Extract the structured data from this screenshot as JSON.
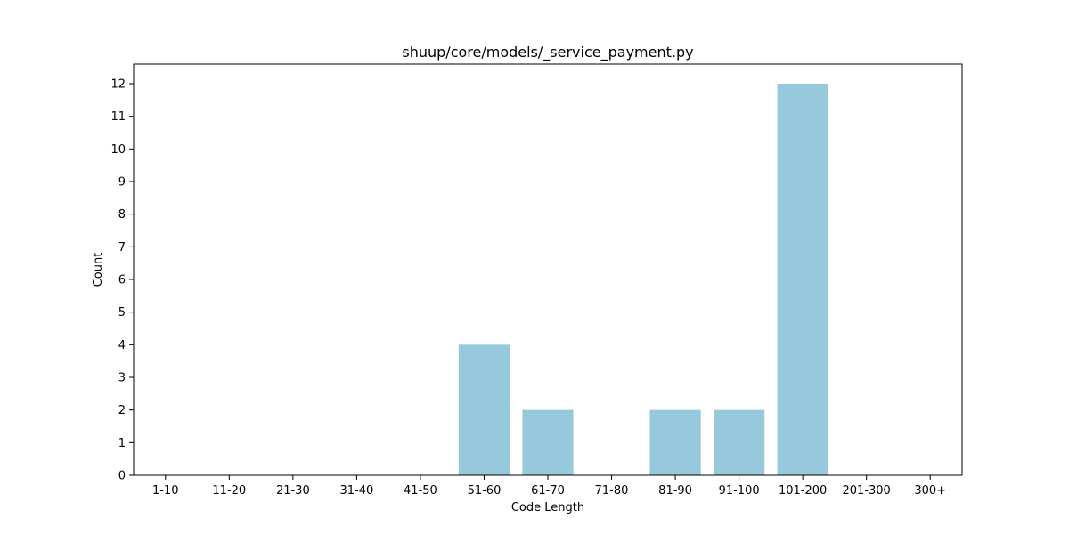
{
  "chart_data": {
    "type": "bar",
    "title": "shuup/core/models/_service_payment.py",
    "xlabel": "Code Length",
    "ylabel": "Count",
    "categories": [
      "1-10",
      "11-20",
      "21-30",
      "31-40",
      "41-50",
      "51-60",
      "61-70",
      "71-80",
      "81-90",
      "91-100",
      "101-200",
      "201-300",
      "300+"
    ],
    "values": [
      0,
      0,
      0,
      0,
      0,
      4,
      2,
      0,
      2,
      2,
      12,
      0,
      0
    ],
    "ylim": [
      0,
      12.6
    ],
    "yticks": [
      0,
      1,
      2,
      3,
      4,
      5,
      6,
      7,
      8,
      9,
      10,
      11,
      12
    ],
    "grid": false,
    "legend": "none",
    "colors": {
      "bar": "#96c9dc",
      "axis": "#000000",
      "background": "#ffffff"
    }
  }
}
